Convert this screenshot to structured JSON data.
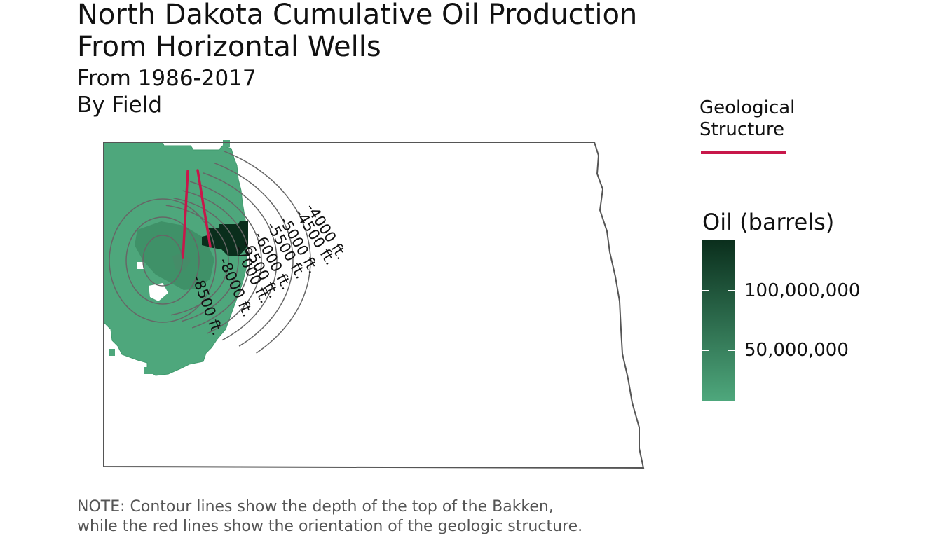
{
  "title": [
    "North Dakota Cumulative Oil Production",
    "From Horizontal Wells"
  ],
  "subtitle": [
    "From 1986-2017",
    "By Field"
  ],
  "caption": [
    "NOTE: Contour lines show the depth of the top of the Bakken,",
    "while the red lines show the orientation of the geologic structure."
  ],
  "legend_structure": {
    "title": [
      "Geological",
      "Structure"
    ],
    "color": "#C8174A"
  },
  "legend_oil": {
    "title": "Oil (barrels)",
    "color_low": "#4EA77C",
    "color_high": "#0A2E1C",
    "ticks": [
      "100,000,000",
      "50,000,000"
    ]
  },
  "contours": {
    "labels": [
      "-4000 ft.",
      "-4500 ft.",
      "-5000 ft.",
      "-5500 ft.",
      "-6000 ft.",
      "-6500 ft.",
      "-7000 ft.",
      "-8000 ft.",
      "-8500 ft."
    ]
  },
  "colors": {
    "field_base": "#4EA77C",
    "field_mid": "#3E8F66",
    "field_dark": "#0A2E1C",
    "contour": "#666666",
    "state_outline": "#555555"
  }
}
